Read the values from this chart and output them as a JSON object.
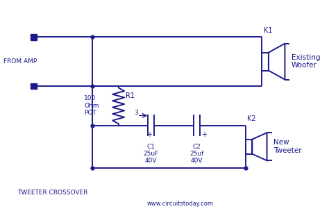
{
  "bg_color": "#ffffff",
  "line_color": "#1a1a8c",
  "text_color": "#1a1a8c",
  "title": "TWEETER CROSSOVER",
  "website": "www.circuitstoday.com",
  "from_amp": "FROM AMP",
  "k1": "K1",
  "k2": "K2",
  "existing_woofer": "Existing\nWoofer",
  "new_tweeter": "New\nTweeter",
  "r1_label": "R1",
  "r1_val": "100\nOhm\nPOT",
  "c1_val": "C1\n25uF\n40V",
  "c2_val": "C2\n25uf\n40V"
}
